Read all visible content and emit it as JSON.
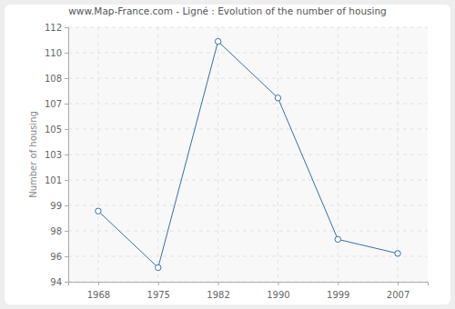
{
  "chart_data": {
    "type": "line",
    "title": "www.Map-France.com - Ligné : Evolution of the number of housing",
    "y_label": "Number of housing",
    "categories": [
      "1968",
      "1975",
      "1982",
      "1990",
      "1999",
      "2007"
    ],
    "values": [
      99,
      95,
      111,
      107,
      97,
      96
    ],
    "color": "#3a6ea5",
    "marker": "circle",
    "ylim": [
      94,
      112
    ],
    "yticks": [
      {
        "value": 94,
        "label": "94"
      },
      {
        "value": 95.8,
        "label": "96"
      },
      {
        "value": 97.6,
        "label": "98"
      },
      {
        "value": 99.4,
        "label": "99"
      },
      {
        "value": 101.2,
        "label": "101"
      },
      {
        "value": 103,
        "label": "103"
      },
      {
        "value": 104.8,
        "label": "105"
      },
      {
        "value": 106.6,
        "label": "107"
      },
      {
        "value": 108.4,
        "label": "108"
      },
      {
        "value": 110.2,
        "label": "110"
      },
      {
        "value": 112,
        "label": "112"
      }
    ],
    "grid": true
  }
}
